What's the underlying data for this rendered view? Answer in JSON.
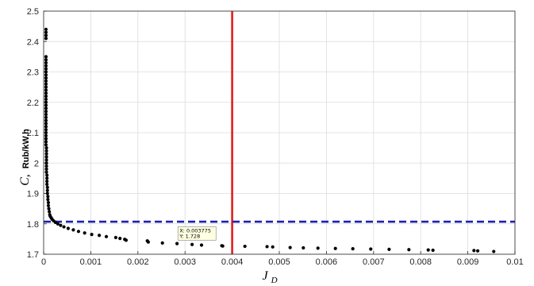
{
  "chart_data": {
    "type": "scatter",
    "title": "",
    "xlabel": {
      "main": "J",
      "subscript": "D"
    },
    "ylabel": {
      "main": "C,",
      "unit": "Rub/kW.h"
    },
    "xlim": [
      0,
      0.01
    ],
    "ylim": [
      1.7,
      2.5
    ],
    "xticks": [
      0,
      0.001,
      0.002,
      0.003,
      0.004,
      0.005,
      0.006,
      0.007,
      0.008,
      0.009,
      0.01
    ],
    "xtick_labels": [
      "0",
      "0.001",
      "0.002",
      "0.003",
      "0.004",
      "0.005",
      "0.006",
      "0.007",
      "0.008",
      "0.009",
      "0.01"
    ],
    "yticks": [
      1.7,
      1.8,
      1.9,
      2.0,
      2.1,
      2.2,
      2.3,
      2.4,
      2.5
    ],
    "ytick_labels": [
      "1.7",
      "1.8",
      "1.9",
      "2",
      "2.1",
      "2.2",
      "2.3",
      "2.4",
      "2.5"
    ],
    "grid": true,
    "marker_color": "#000000",
    "points": [
      [
        5e-05,
        2.44
      ],
      [
        5e-05,
        2.43
      ],
      [
        5e-05,
        2.42
      ],
      [
        5e-05,
        2.41
      ],
      [
        5e-05,
        2.35
      ],
      [
        5e-05,
        2.34
      ],
      [
        5e-05,
        2.33
      ],
      [
        5e-05,
        2.32
      ],
      [
        5e-05,
        2.31
      ],
      [
        5e-05,
        2.3
      ],
      [
        5e-05,
        2.29
      ],
      [
        5e-05,
        2.28
      ],
      [
        5e-05,
        2.27
      ],
      [
        5e-05,
        2.26
      ],
      [
        5e-05,
        2.25
      ],
      [
        5e-05,
        2.24
      ],
      [
        5e-05,
        2.23
      ],
      [
        5e-05,
        2.22
      ],
      [
        5e-05,
        2.21
      ],
      [
        5e-05,
        2.2
      ],
      [
        5e-05,
        2.19
      ],
      [
        5e-05,
        2.18
      ],
      [
        5e-05,
        2.17
      ],
      [
        5e-05,
        2.16
      ],
      [
        5e-05,
        2.15
      ],
      [
        5e-05,
        2.14
      ],
      [
        5e-05,
        2.13
      ],
      [
        5e-05,
        2.12
      ],
      [
        5e-05,
        2.11
      ],
      [
        5e-05,
        2.1
      ],
      [
        5e-05,
        2.09
      ],
      [
        5e-05,
        2.08
      ],
      [
        5e-05,
        2.07
      ],
      [
        5e-05,
        2.06
      ],
      [
        6e-05,
        2.05
      ],
      [
        6e-05,
        2.04
      ],
      [
        6e-05,
        2.03
      ],
      [
        6e-05,
        2.02
      ],
      [
        6e-05,
        2.01
      ],
      [
        6e-05,
        2.0
      ],
      [
        6e-05,
        1.99
      ],
      [
        6e-05,
        1.98
      ],
      [
        6e-05,
        1.97
      ],
      [
        7e-05,
        1.96
      ],
      [
        7e-05,
        1.95
      ],
      [
        7e-05,
        1.94
      ],
      [
        7e-05,
        1.93
      ],
      [
        8e-05,
        1.92
      ],
      [
        8e-05,
        1.91
      ],
      [
        8e-05,
        1.9
      ],
      [
        9e-05,
        1.89
      ],
      [
        9e-05,
        1.88
      ],
      [
        0.0001,
        1.87
      ],
      [
        0.0001,
        1.86
      ],
      [
        0.00011,
        1.85
      ],
      [
        0.00012,
        1.84
      ],
      [
        0.00013,
        1.83
      ],
      [
        0.00014,
        1.825
      ],
      [
        0.00016,
        1.82
      ],
      [
        0.00018,
        1.815
      ],
      [
        0.00021,
        1.81
      ],
      [
        0.00025,
        1.805
      ],
      [
        0.0003,
        1.8
      ],
      [
        0.00036,
        1.795
      ],
      [
        0.00043,
        1.79
      ],
      [
        0.00052,
        1.785
      ],
      [
        0.00063,
        1.78
      ],
      [
        0.00074,
        1.775
      ],
      [
        0.00087,
        1.77
      ],
      [
        0.00102,
        1.765
      ],
      [
        0.00118,
        1.762
      ],
      [
        0.00133,
        1.758
      ],
      [
        0.00153,
        1.755
      ],
      [
        0.00162,
        1.752
      ],
      [
        0.00172,
        1.749
      ],
      [
        0.00175,
        1.746
      ],
      [
        0.0022,
        1.744
      ],
      [
        0.00222,
        1.74
      ],
      [
        0.00252,
        1.737
      ],
      [
        0.00283,
        1.735
      ],
      [
        0.00315,
        1.732
      ],
      [
        0.00335,
        1.73
      ],
      [
        0.00378,
        1.728
      ],
      [
        0.0038,
        1.727
      ],
      [
        0.00427,
        1.726
      ],
      [
        0.00474,
        1.725
      ],
      [
        0.00486,
        1.724
      ],
      [
        0.00523,
        1.722
      ],
      [
        0.00551,
        1.721
      ],
      [
        0.00582,
        1.72
      ],
      [
        0.00619,
        1.719
      ],
      [
        0.00656,
        1.718
      ],
      [
        0.00694,
        1.717
      ],
      [
        0.00733,
        1.716
      ],
      [
        0.00775,
        1.715
      ],
      [
        0.00816,
        1.714
      ],
      [
        0.00826,
        1.713
      ],
      [
        0.00913,
        1.712
      ],
      [
        0.00921,
        1.711
      ],
      [
        0.00955,
        1.709
      ]
    ],
    "reference_lines": [
      {
        "orientation": "vertical",
        "value": 0.004,
        "color": "#e0201a",
        "style": "solid"
      },
      {
        "orientation": "horizontal",
        "value": 1.807,
        "color": "#1f1fb0",
        "style": "dashed"
      }
    ],
    "datatip": {
      "x_text": "X: 0.003775",
      "y_text": "Y: 1.728",
      "x": 0.003775,
      "y": 1.728
    }
  }
}
